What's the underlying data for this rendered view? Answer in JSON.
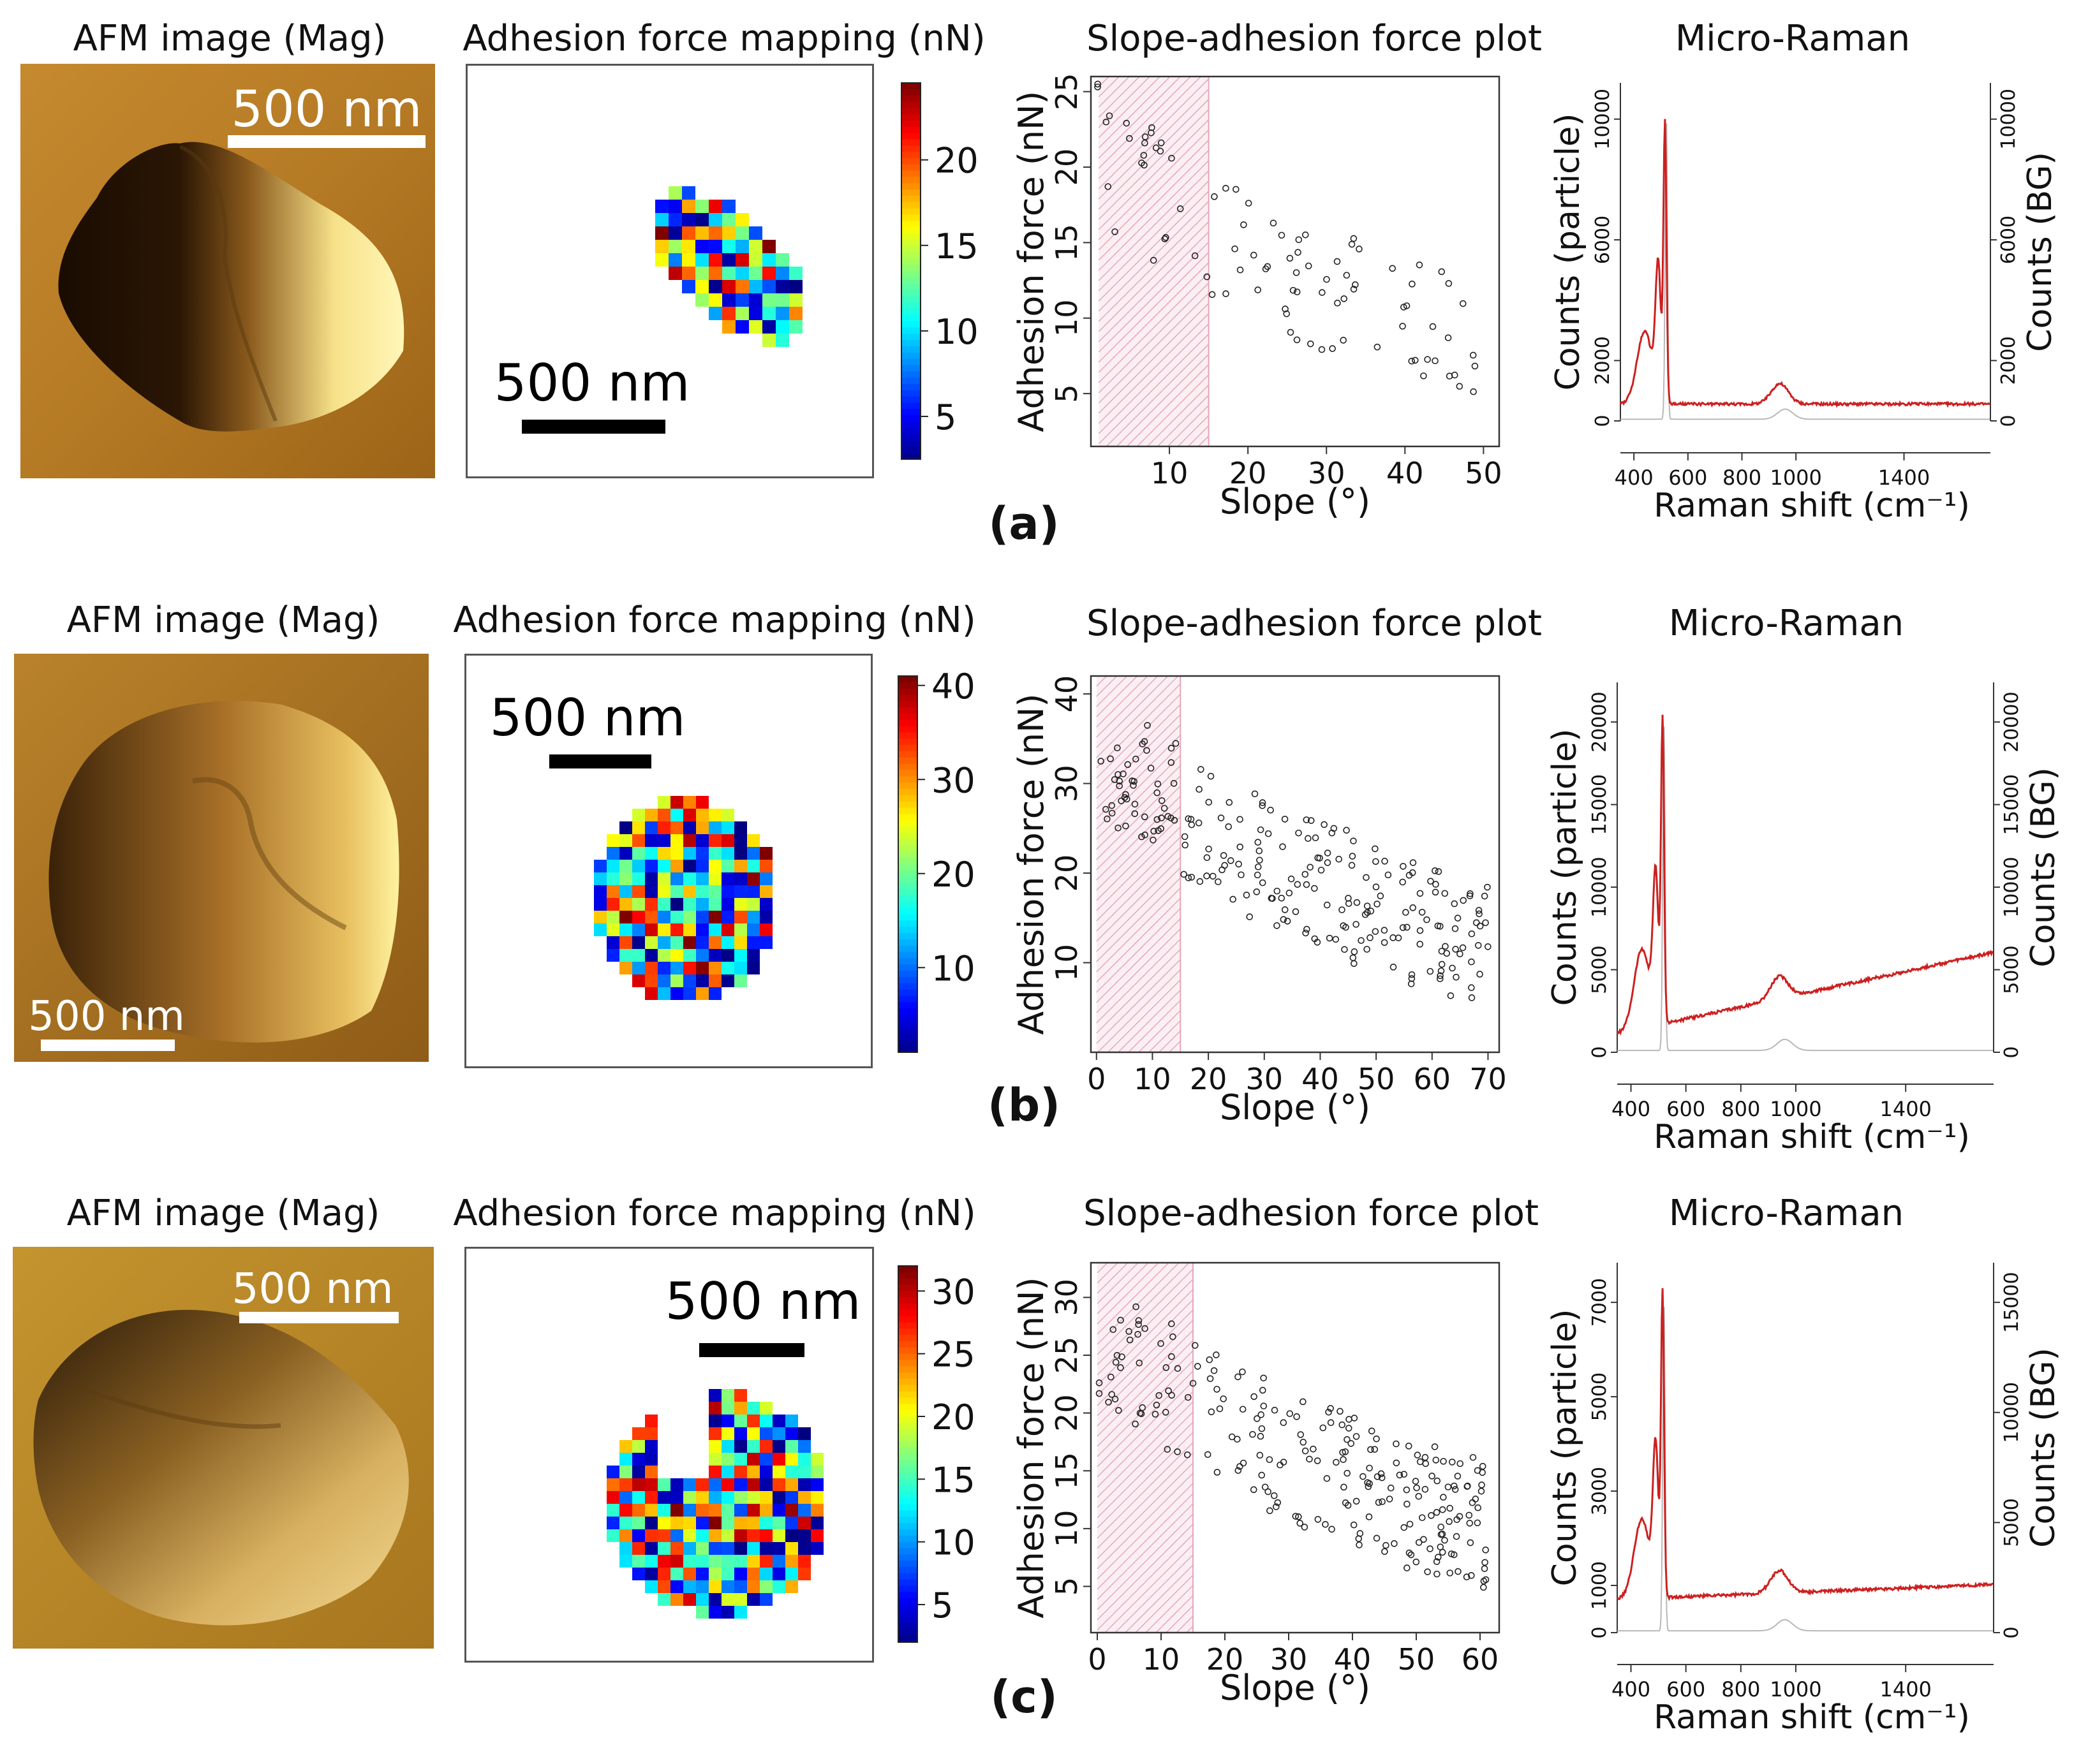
{
  "colors": {
    "afm_dark": "#1a0c02",
    "afm_mid": "#a86f1f",
    "afm_light": "#fff2a3",
    "particle_spectrum": "#cc2020",
    "bg_spectrum": "#b8b8b8",
    "hatch": "#e3a8b8"
  },
  "rows": [
    {
      "label": "(a)",
      "afm": {
        "title": "AFM image (Mag)",
        "scale_label": "500 nm"
      },
      "adhesion_map": {
        "title": "Adhesion force mapping (nN)",
        "scale_label": "500 nm",
        "colorbar_ticks": [
          20,
          15,
          10,
          5
        ],
        "colorbar_range": [
          2.5,
          24.5
        ]
      },
      "scatter": {
        "title": "Slope-adhesion force plot",
        "xlabel": "Slope (°)",
        "ylabel": "Adhesion force (nN)",
        "xlim": [
          0,
          52
        ],
        "ylim": [
          1.5,
          26
        ],
        "xticks": [
          10,
          20,
          30,
          40,
          50
        ],
        "yticks": [
          5,
          10,
          15,
          20,
          25
        ],
        "hatch_x": [
          1,
          15
        ]
      },
      "raman": {
        "title": "Micro-Raman",
        "xlabel": "Raman shift (cm⁻¹)",
        "ylabel_left": "Counts (particle)",
        "ylabel_right": "Counts (BG)",
        "xticks": [
          400,
          600,
          800,
          1000,
          1400
        ],
        "yticks_left": [
          0,
          2000,
          6000,
          10000
        ],
        "yticks_right": [
          0,
          2000,
          6000,
          10000
        ]
      }
    },
    {
      "label": "(b)",
      "afm": {
        "title": "AFM image (Mag)",
        "scale_label": "500 nm"
      },
      "adhesion_map": {
        "title": "Adhesion force mapping (nN)",
        "scale_label": "500 nm",
        "colorbar_ticks": [
          40,
          30,
          20,
          10
        ],
        "colorbar_range": [
          1,
          41
        ]
      },
      "scatter": {
        "title": "Slope-adhesion force plot",
        "xlabel": "Slope (°)",
        "ylabel": "Adhesion force (nN)",
        "xlim": [
          -1,
          72
        ],
        "ylim": [
          0,
          42
        ],
        "xticks": [
          0,
          10,
          20,
          30,
          40,
          50,
          60,
          70
        ],
        "yticks": [
          10,
          20,
          30,
          40
        ],
        "hatch_x": [
          0,
          15
        ]
      },
      "raman": {
        "title": "Micro-Raman",
        "xlabel": "Raman shift (cm⁻¹)",
        "ylabel_left": "Counts (particle)",
        "ylabel_right": "Counts (BG)",
        "xticks": [
          400,
          600,
          800,
          1000,
          1400
        ],
        "yticks_left": [
          0,
          5000,
          10000,
          15000,
          20000
        ],
        "yticks_right": [
          0,
          5000,
          10000,
          15000,
          20000
        ]
      }
    },
    {
      "label": "(c)",
      "afm": {
        "title": "AFM image (Mag)",
        "scale_label": "500 nm"
      },
      "adhesion_map": {
        "title": "Adhesion force mapping (nN)",
        "scale_label": "500 nm",
        "colorbar_ticks": [
          30,
          25,
          20,
          15,
          10,
          5
        ],
        "colorbar_range": [
          2,
          32
        ]
      },
      "scatter": {
        "title": "Slope-adhesion force plot",
        "xlabel": "Slope (°)",
        "ylabel": "Adhesion force (nN)",
        "xlim": [
          -1,
          63
        ],
        "ylim": [
          1,
          33
        ],
        "xticks": [
          0,
          10,
          20,
          30,
          40,
          50,
          60
        ],
        "yticks": [
          5,
          10,
          15,
          20,
          25,
          30
        ],
        "hatch_x": [
          0,
          15
        ]
      },
      "raman": {
        "title": "Micro-Raman",
        "xlabel": "Raman shift (cm⁻¹)",
        "ylabel_left": "Counts (particle)",
        "ylabel_right": "Counts (BG)",
        "xticks": [
          400,
          600,
          800,
          1000,
          1400
        ],
        "yticks_left": [
          0,
          1000,
          3000,
          5000,
          7000
        ],
        "yticks_right": [
          0,
          5000,
          10000,
          15000
        ]
      }
    }
  ]
}
